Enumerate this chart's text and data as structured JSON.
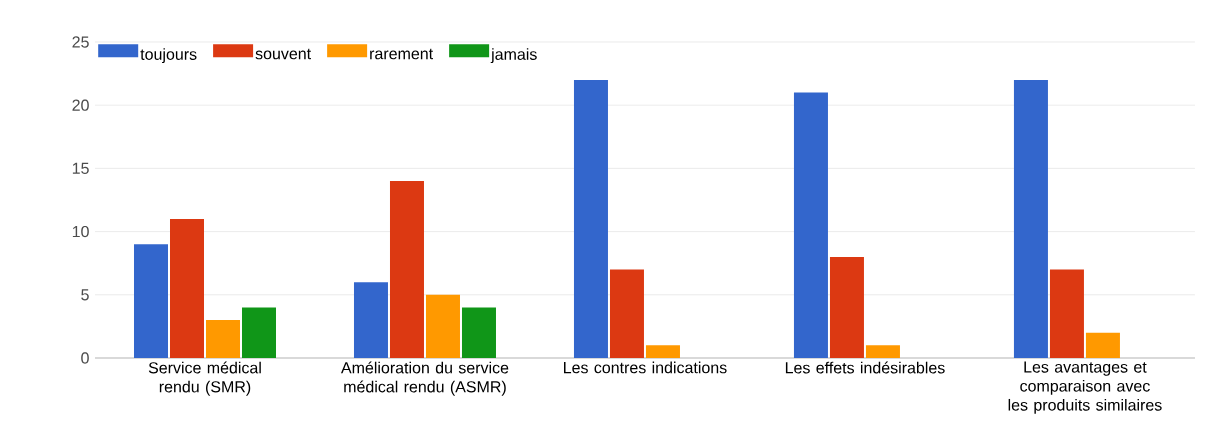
{
  "chart_data": {
    "type": "bar",
    "categories": [
      "Service médical rendu (SMR)",
      "Amélioration du service médical rendu (ASMR)",
      "Les contres indications",
      "Les effets indésirables",
      "Les avantages et comparaison avec les produits similaires"
    ],
    "series": [
      {
        "name": "toujours",
        "color": "#3366cc",
        "values": [
          9,
          6,
          22,
          21,
          22
        ]
      },
      {
        "name": "souvent",
        "color": "#dc3912",
        "values": [
          11,
          14,
          7,
          8,
          7
        ]
      },
      {
        "name": "rarement",
        "color": "#ff9900",
        "values": [
          3,
          5,
          1,
          1,
          2
        ]
      },
      {
        "name": "jamais",
        "color": "#109618",
        "values": [
          4,
          4,
          0,
          0,
          0
        ]
      }
    ],
    "ylim": [
      0,
      25
    ],
    "yticks": [
      0,
      5,
      10,
      15,
      20,
      25
    ],
    "grid": "y",
    "legend": "top left"
  }
}
